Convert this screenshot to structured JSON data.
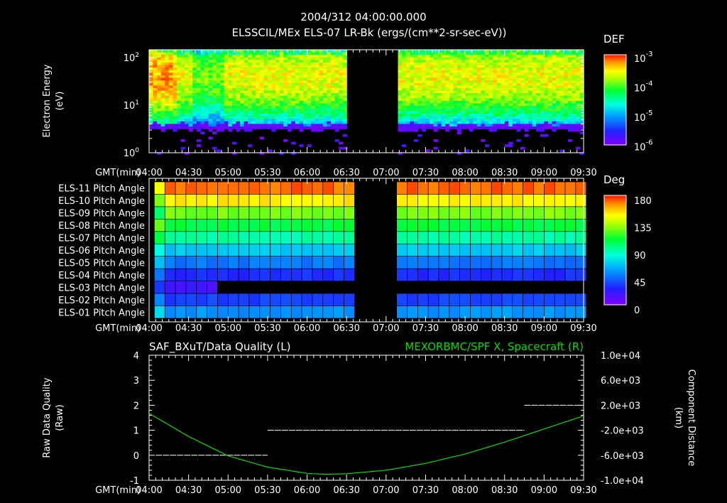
{
  "header": {
    "date_time": "2004/312 04:00:00.000",
    "subtitle": "ELSSCIL/MEx ELS-07 LR-Bk  (ergs/(cm**2-sr-sec-eV))"
  },
  "time_axis": {
    "label": "GMT(min)",
    "ticks": [
      "04:00",
      "04:30",
      "05:00",
      "05:30",
      "06:00",
      "06:30",
      "07:00",
      "07:30",
      "08:00",
      "08:30",
      "09:00",
      "09:30"
    ]
  },
  "colors": {
    "background": "#000000",
    "axis": "#ffffff",
    "orbit_line": "#00dd00"
  },
  "chart_data": [
    {
      "type": "heatmap",
      "name": "energy-spectrogram",
      "ylabel_line1": "Electron Energy",
      "ylabel_line2": "(eV)",
      "yscale": "log",
      "ylim": [
        1,
        145
      ],
      "yticks": [
        "10",
        "10",
        "10"
      ],
      "ytick_exponents": [
        "0",
        "1",
        "2"
      ],
      "xlim_minutes_after_0400": [
        0,
        330
      ],
      "data_intervals_minutes": [
        [
          0,
          149
        ],
        [
          188,
          330
        ]
      ],
      "peak_energy_eV": 40,
      "low_energy_cutoff_eV": 4,
      "colorbar": {
        "title": "DEF",
        "scale": "log",
        "labels": [
          "10",
          "10",
          "10",
          "10"
        ],
        "exponents": [
          "-3",
          "-4",
          "-5",
          "-6"
        ],
        "range": [
          1e-06,
          0.001
        ]
      }
    },
    {
      "type": "heatmap",
      "name": "pitch-angle",
      "rows": [
        "ELS-11 Pitch Angle",
        "ELS-10 Pitch Angle",
        "ELS-09 Pitch Angle",
        "ELS-08 Pitch Angle",
        "ELS-07 Pitch Angle",
        "ELS-06 Pitch Angle",
        "ELS-05 Pitch Angle",
        "ELS-04 Pitch Angle",
        "ELS-03 Pitch Angle",
        "ELS-02 Pitch Angle",
        "ELS-01 Pitch Angle"
      ],
      "pitch_angle_deg": [
        170,
        150,
        125,
        105,
        90,
        68,
        48,
        30,
        18,
        35,
        55
      ],
      "els03_end_minute": 48,
      "data_intervals_minutes": [
        [
          0,
          149
        ],
        [
          188,
          330
        ]
      ],
      "colorbar": {
        "title": "Deg",
        "labels": [
          "180",
          "135",
          "90",
          "45",
          "0"
        ],
        "range": [
          0,
          180
        ]
      }
    },
    {
      "type": "line",
      "name": "quality-and-position",
      "title_left": "SAF_BXuT/Data Quality (L)",
      "title_right": "MEXORBMC/SPF X, Spacecraft (R)",
      "ylabel_left_line1": "Raw Data Quality",
      "ylabel_left_line2": "(Raw)",
      "ylabel_right_line1": "Component Distance",
      "ylabel_right_line2": "(km)",
      "ylim_left": [
        -1,
        4
      ],
      "yticks_left": [
        "4",
        "3",
        "2",
        "1",
        "0",
        "-1"
      ],
      "ylim_right": [
        -10000,
        10000
      ],
      "yticks_right": [
        "1.0e+04",
        "6.0e+03",
        "2.0e+03",
        "-2.0e+03",
        "-6.0e+03",
        "-1.0e+04"
      ],
      "data_quality_segments": [
        {
          "start_min": 5,
          "end_min": 90,
          "value": 0
        },
        {
          "start_min": 90,
          "end_min": 285,
          "value": 1
        },
        {
          "start_min": 285,
          "end_min": 326,
          "value": 2
        }
      ],
      "spf_x_minutes": [
        0,
        30,
        60,
        90,
        120,
        135,
        150,
        180,
        210,
        240,
        270,
        300,
        330
      ],
      "spf_x_km": [
        700,
        -3000,
        -6100,
        -7900,
        -8900,
        -9050,
        -8950,
        -8400,
        -7300,
        -5800,
        -3900,
        -1800,
        300
      ]
    }
  ]
}
